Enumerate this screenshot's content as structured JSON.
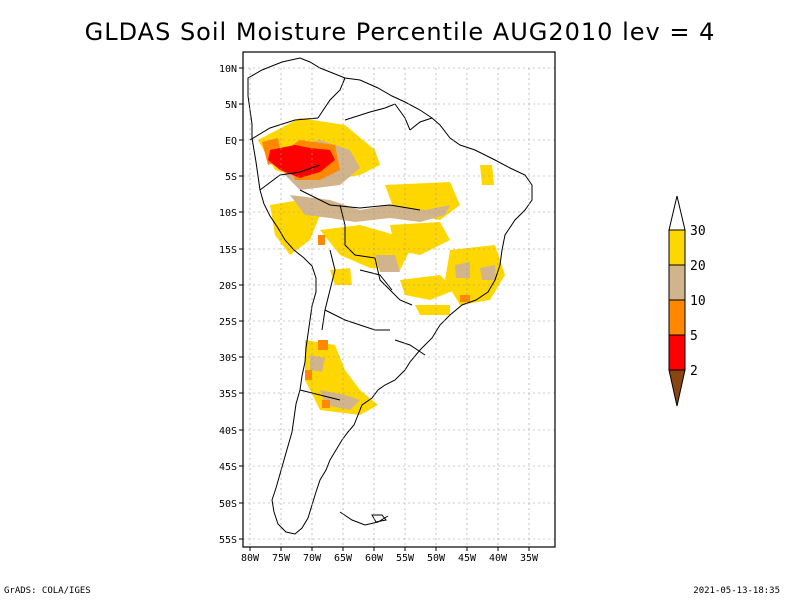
{
  "title": "GLDAS Soil Moisture Percentile AUG2010 lev = 4",
  "axes": {
    "lat_labels": [
      "10N",
      "5N",
      "EQ",
      "5S",
      "10S",
      "15S",
      "20S",
      "25S",
      "30S",
      "35S",
      "40S",
      "45S",
      "50S",
      "55S"
    ],
    "lon_labels": [
      "80W",
      "75W",
      "70W",
      "65W",
      "60W",
      "55W",
      "50W",
      "45W",
      "40W",
      "35W"
    ]
  },
  "legend": {
    "labels": [
      "2",
      "5",
      "10",
      "20",
      "30"
    ],
    "colors": [
      "#8B4513",
      "#ff0000",
      "#ff8800",
      "#d2b48c",
      "#ffd700"
    ]
  },
  "footer": {
    "left": "GrADS: COLA/IGES",
    "right": "2021-05-13-18:35"
  }
}
